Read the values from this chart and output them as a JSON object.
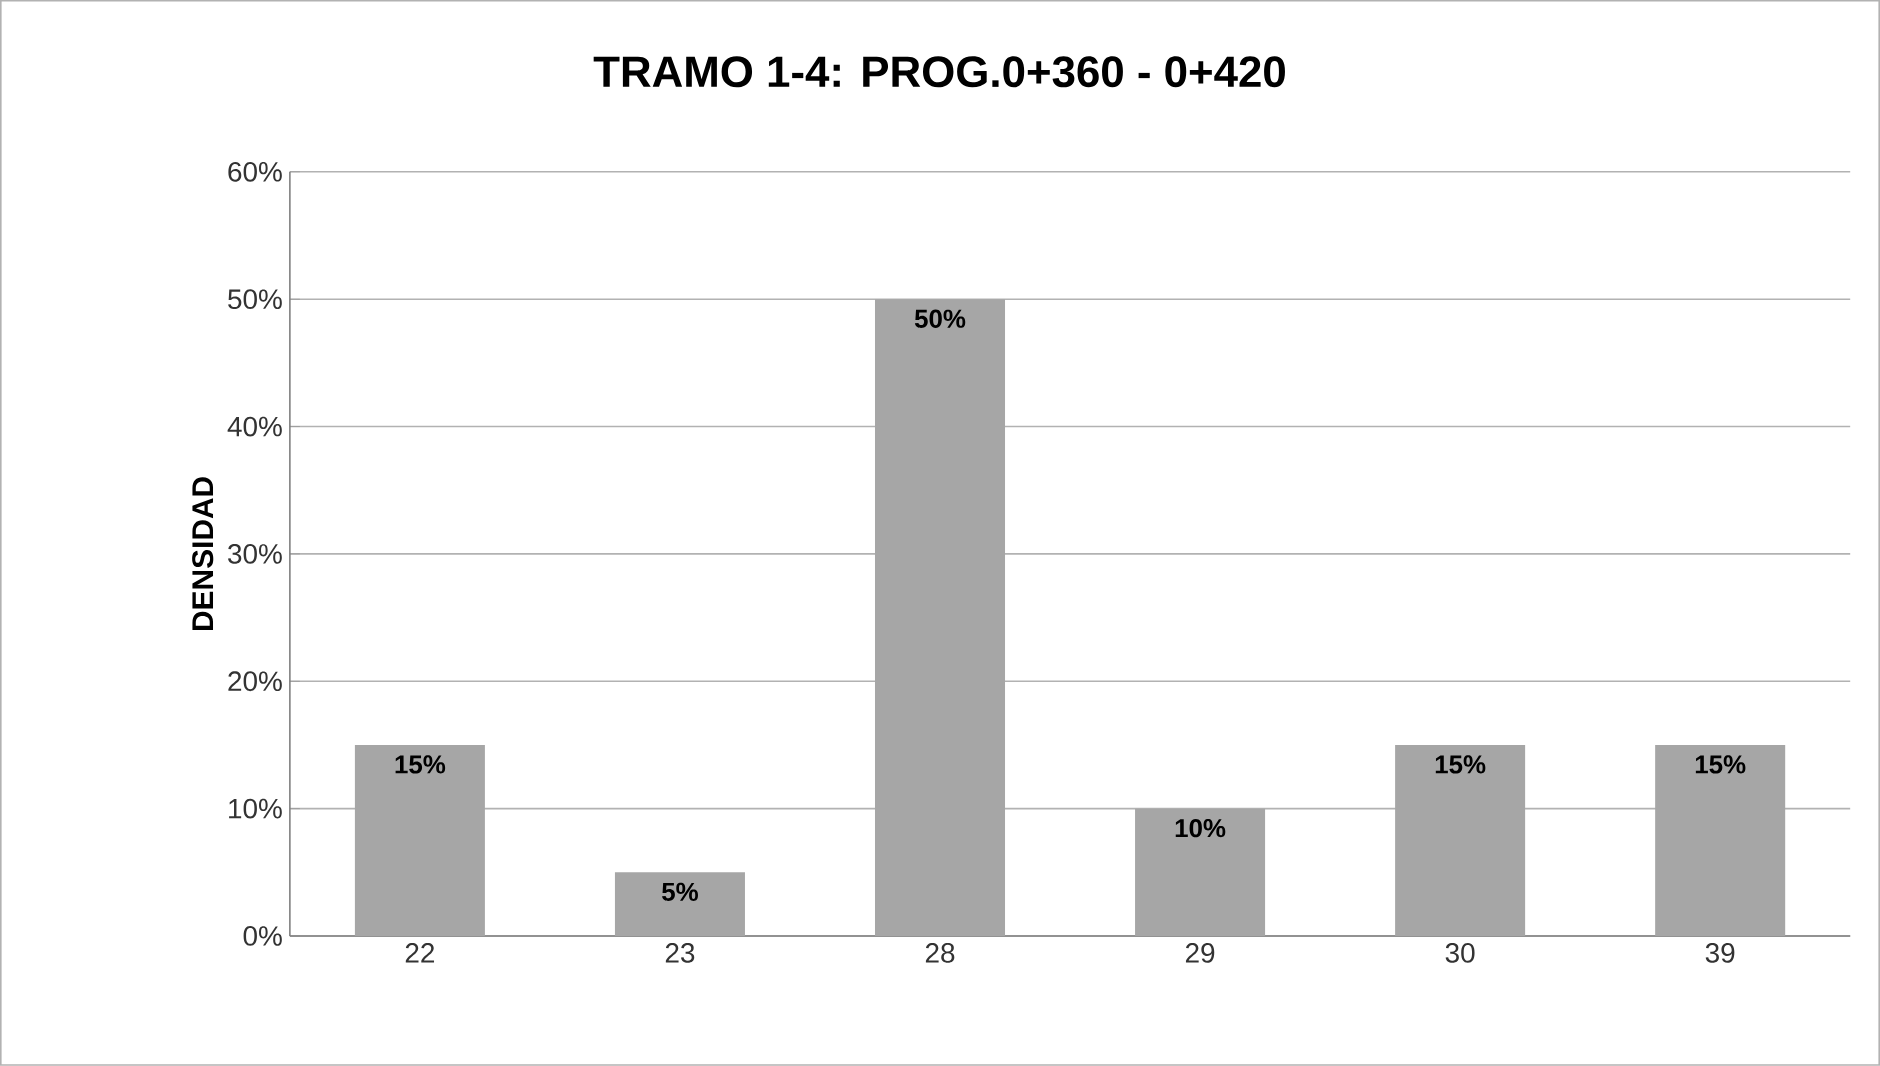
{
  "chart_data": {
    "type": "bar",
    "title": "TRAMO 1-4: PROG.0+360 - 0+420",
    "ylabel": "DENSIDAD",
    "categories": [
      "22",
      "23",
      "28",
      "29",
      "30",
      "39"
    ],
    "values": [
      15,
      5,
      50,
      10,
      15,
      15
    ],
    "value_labels": [
      "15%",
      "5%",
      "50%",
      "10%",
      "15%",
      "15%"
    ],
    "color": "#a6a6a6",
    "ylim": [
      0,
      60
    ],
    "yticks": [
      {
        "value": 0,
        "label": "0%"
      },
      {
        "value": 10,
        "label": "10%"
      },
      {
        "value": 20,
        "label": "20%"
      },
      {
        "value": 30,
        "label": "30%"
      },
      {
        "value": 40,
        "label": "40%"
      },
      {
        "value": 50,
        "label": "50%"
      },
      {
        "value": 60,
        "label": "60%"
      }
    ],
    "grid": "y"
  }
}
